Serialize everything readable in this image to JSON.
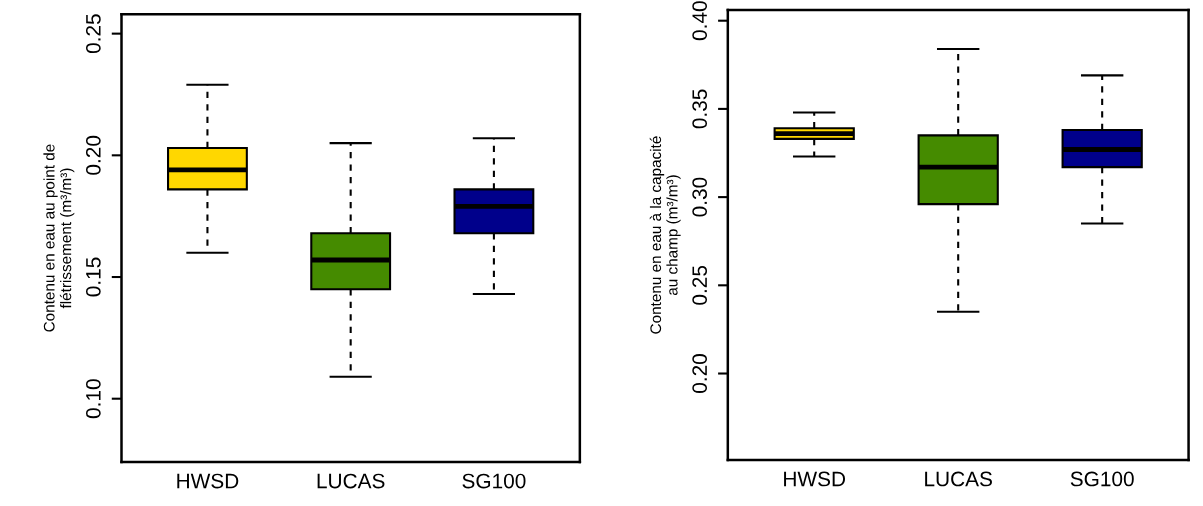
{
  "chart_data": [
    {
      "type": "box",
      "ylabel": "Contenu en eau au point de\nflétrissement (m³/m³)",
      "categories": [
        "HWSD",
        "LUCAS",
        "SG100"
      ],
      "colors": [
        "#ffd700",
        "#458b00",
        "#00008b"
      ],
      "boxes": [
        {
          "low": 0.16,
          "q1": 0.186,
          "median": 0.194,
          "q3": 0.203,
          "high": 0.229
        },
        {
          "low": 0.109,
          "q1": 0.145,
          "median": 0.157,
          "q3": 0.168,
          "high": 0.205
        },
        {
          "low": 0.143,
          "q1": 0.168,
          "median": 0.179,
          "q3": 0.186,
          "high": 0.207
        }
      ],
      "ylim": [
        0.074,
        0.258
      ],
      "yticks": [
        {
          "value": 0.1,
          "label": "0.10"
        },
        {
          "value": 0.15,
          "label": "0.15"
        },
        {
          "value": 0.2,
          "label": "0.20"
        },
        {
          "value": 0.25,
          "label": "0.25"
        }
      ],
      "grid": false,
      "legend": false
    },
    {
      "type": "box",
      "ylabel": "Contenu en eau à la capacité\nau champ (m³/m³)",
      "categories": [
        "HWSD",
        "LUCAS",
        "SG100"
      ],
      "colors": [
        "#ffd700",
        "#458b00",
        "#00008b"
      ],
      "boxes": [
        {
          "low": 0.323,
          "q1": 0.333,
          "median": 0.336,
          "q3": 0.339,
          "high": 0.348
        },
        {
          "low": 0.235,
          "q1": 0.296,
          "median": 0.317,
          "q3": 0.335,
          "high": 0.384
        },
        {
          "low": 0.285,
          "q1": 0.317,
          "median": 0.327,
          "q3": 0.338,
          "high": 0.369
        }
      ],
      "ylim": [
        0.151,
        0.406
      ],
      "yticks": [
        {
          "value": 0.2,
          "label": "0.20"
        },
        {
          "value": 0.25,
          "label": "0.25"
        },
        {
          "value": 0.3,
          "label": "0.30"
        },
        {
          "value": 0.35,
          "label": "0.35"
        },
        {
          "value": 0.4,
          "label": "0.40"
        }
      ],
      "grid": false,
      "legend": false
    }
  ]
}
